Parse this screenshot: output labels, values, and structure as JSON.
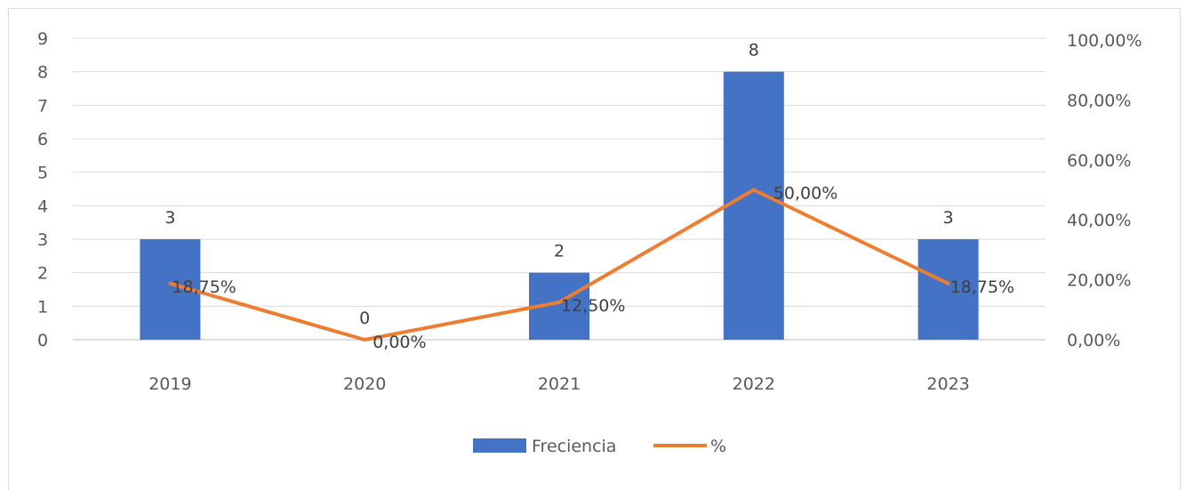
{
  "chart_data": {
    "type": "bar",
    "categories": [
      "2019",
      "2020",
      "2021",
      "2022",
      "2023"
    ],
    "series": [
      {
        "name": "Freciencia",
        "type": "bar",
        "axis": "left",
        "values": [
          3,
          0,
          2,
          8,
          3
        ],
        "labels": [
          "3",
          "0",
          "2",
          "8",
          "3"
        ],
        "color": "#4472C4"
      },
      {
        "name": "%",
        "type": "line",
        "axis": "right",
        "values": [
          18.75,
          0,
          12.5,
          50,
          18.75
        ],
        "labels": [
          "18,75%",
          "0,00%",
          "12,50%",
          "50,00%",
          "18,75%"
        ],
        "color": "#ED7D31"
      }
    ],
    "y_left": {
      "range": [
        0,
        9
      ],
      "ticks": [
        "0",
        "1",
        "2",
        "3",
        "4",
        "5",
        "6",
        "7",
        "8",
        "9"
      ]
    },
    "y_right": {
      "range": [
        0,
        100
      ],
      "ticks": [
        "0,00%",
        "20,00%",
        "40,00%",
        "60,00%",
        "80,00%",
        "100,00%"
      ]
    },
    "grid": true,
    "legend": "bottom"
  }
}
